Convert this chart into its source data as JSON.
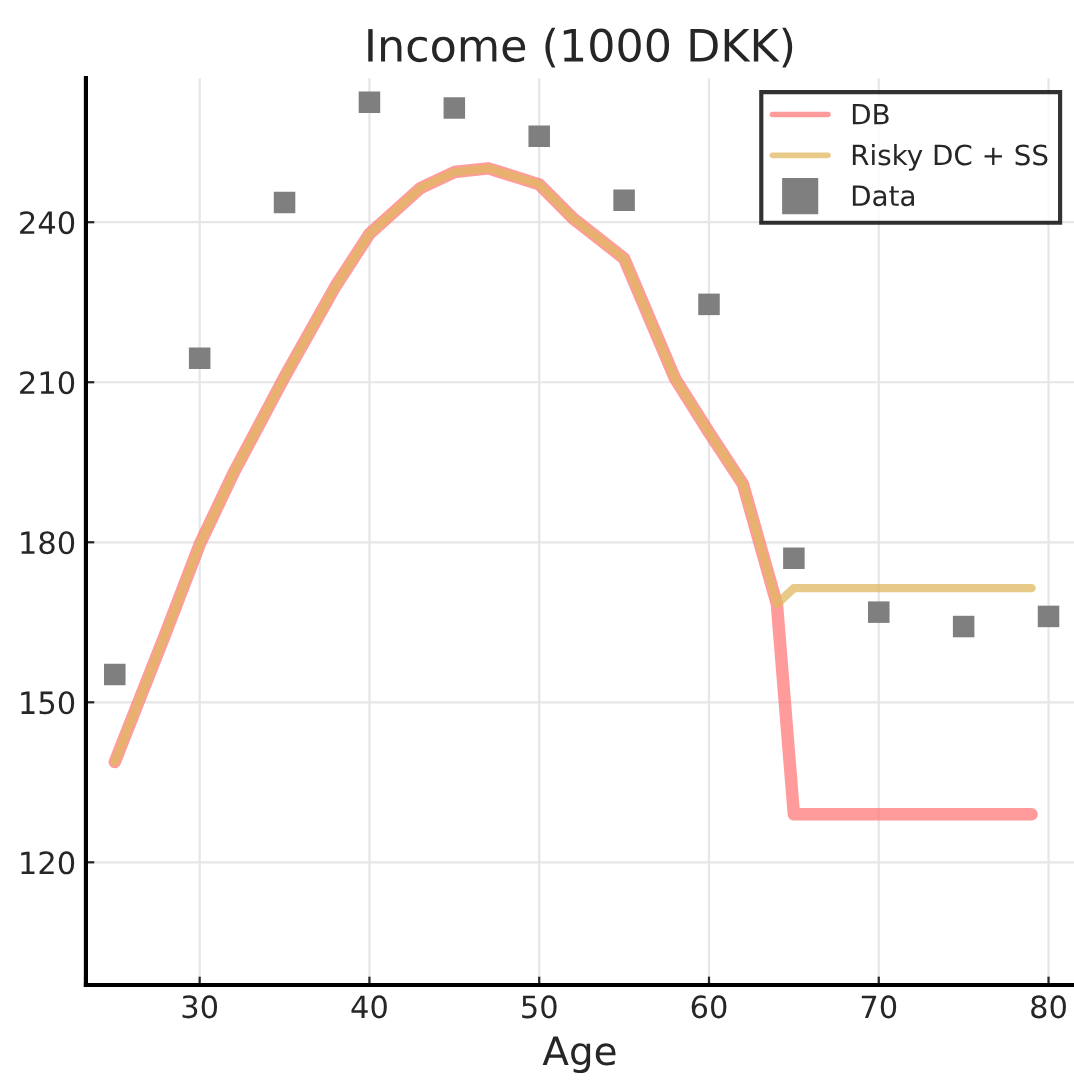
{
  "chart_data": {
    "type": "line",
    "title": "Income (1000 DKK)",
    "xlabel": "Age",
    "xlim": [
      23.3,
      81.5
    ],
    "xticks": [
      30,
      40,
      50,
      60,
      70,
      80
    ],
    "ylim": [
      97,
      267
    ],
    "yticks": [
      120,
      150,
      180,
      210,
      240
    ],
    "grid": true,
    "legend": "top right",
    "series": [
      {
        "name": "DB",
        "color": "#ff7a7a",
        "x": [
          25,
          28,
          30,
          32,
          35,
          38,
          40,
          43,
          45,
          47,
          50,
          52,
          55,
          58,
          60,
          62,
          64,
          65,
          79
        ],
        "values": [
          138.8,
          163,
          179.6,
          193,
          211,
          228,
          237.8,
          246.4,
          249.4,
          250.1,
          247.1,
          240.7,
          233.2,
          210.7,
          200.6,
          190.9,
          168.4,
          129,
          129
        ]
      },
      {
        "name": "Risky DC + SS",
        "color": "#e0b860",
        "x": [
          25,
          28,
          30,
          32,
          35,
          38,
          40,
          43,
          45,
          47,
          50,
          52,
          55,
          58,
          60,
          62,
          64,
          65,
          79
        ],
        "values": [
          138.8,
          163,
          179.6,
          193,
          211,
          228,
          237.8,
          246.4,
          249.4,
          250.1,
          247.1,
          240.7,
          233.2,
          210.7,
          200.6,
          190.9,
          168.4,
          171.4,
          171.4
        ]
      },
      {
        "name": "Data",
        "type": "scatter",
        "marker": "square",
        "color": "#7f7f7f",
        "x": [
          25,
          30,
          35,
          40,
          45,
          50,
          55,
          60,
          65,
          70,
          75,
          80
        ],
        "values": [
          155.2,
          214.5,
          243.7,
          262.5,
          261.4,
          256.1,
          244.1,
          224.6,
          177,
          166.9,
          164.2,
          166.1
        ]
      }
    ]
  }
}
